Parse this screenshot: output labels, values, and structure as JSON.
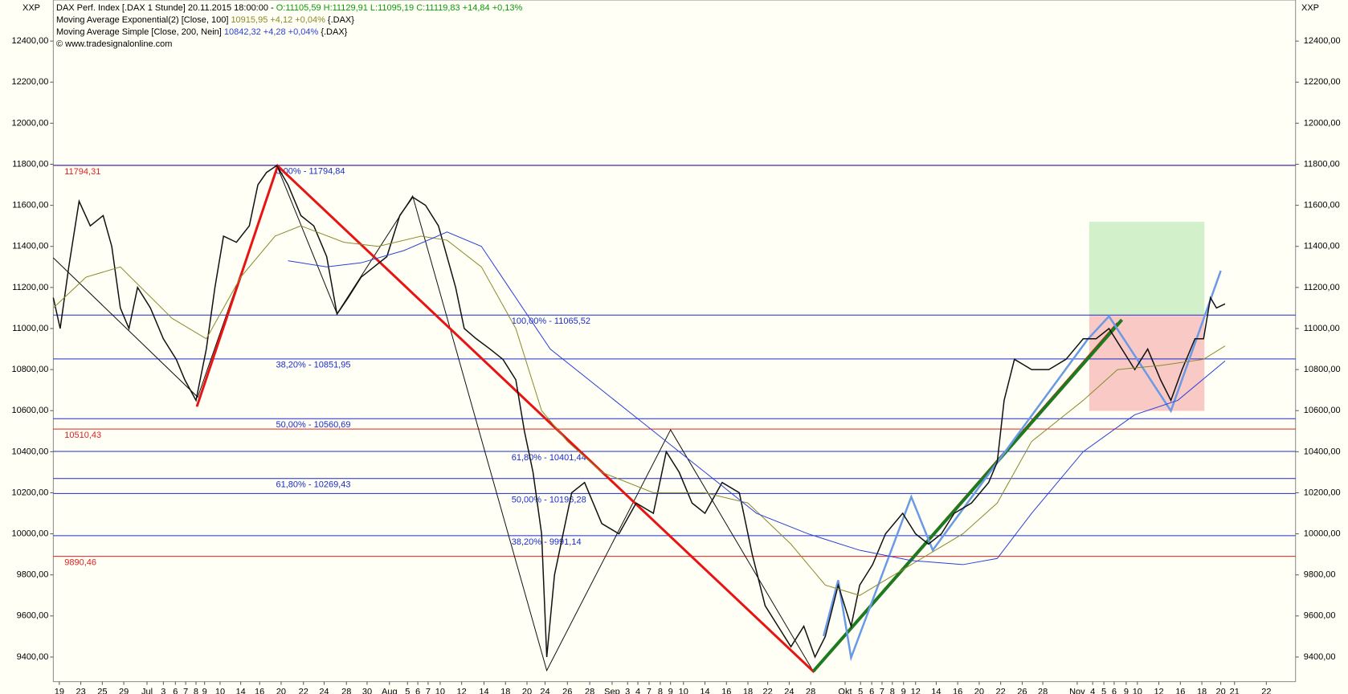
{
  "header": {
    "axis_left": "XXP",
    "axis_right": "XXP",
    "line1_text": "DAX Perf. Index [.DAX  1 Stunde] 20.11.2015 18:00:00 -",
    "line1_quote": "O:11105,59 H:11129,91 L:11095,19 C:11119,83 +14,84 +0,13%",
    "line2_text": "Moving Average Exponential(2) [Close, 100]",
    "line2_value": "10915,95 +4,12 +0,04%",
    "line2_symbol": "{.DAX}",
    "line3_text": "Moving Average Simple [Close, 200, Nein]",
    "line3_value": "10842,32 +4,28 +0,04%",
    "line3_symbol": "{.DAX}",
    "line4_text": "© www.tradesignalonline.com"
  },
  "chart_data": {
    "type": "line",
    "xlim": [
      0,
      1445
    ],
    "ylim": [
      9280,
      12600
    ],
    "yticks": [
      {
        "value": 9400,
        "label": "9400,00"
      },
      {
        "value": 9600,
        "label": "9600,00"
      },
      {
        "value": 9800,
        "label": "9800,00"
      },
      {
        "value": 10000,
        "label": "10000,00"
      },
      {
        "value": 10200,
        "label": "10200,00"
      },
      {
        "value": 10400,
        "label": "10400,00"
      },
      {
        "value": 10600,
        "label": "10600,00"
      },
      {
        "value": 10800,
        "label": "10800,00"
      },
      {
        "value": 11000,
        "label": "11000,00"
      },
      {
        "value": 11200,
        "label": "11200,00"
      },
      {
        "value": 11400,
        "label": "11400,00"
      },
      {
        "value": 11600,
        "label": "11600,00"
      },
      {
        "value": 11800,
        "label": "11800,00"
      },
      {
        "value": 12000,
        "label": "12000,00"
      },
      {
        "value": 12200,
        "label": "12200,00"
      },
      {
        "value": 12400,
        "label": "12400,00"
      }
    ],
    "xticks": [
      {
        "value": 7,
        "label": "19"
      },
      {
        "value": 32,
        "label": "23"
      },
      {
        "value": 57,
        "label": "25"
      },
      {
        "value": 82,
        "label": "29"
      },
      {
        "value": 109,
        "label": "Jul"
      },
      {
        "value": 128,
        "label": "3"
      },
      {
        "value": 142,
        "label": "6"
      },
      {
        "value": 154,
        "label": "7"
      },
      {
        "value": 166,
        "label": "8"
      },
      {
        "value": 176,
        "label": "9"
      },
      {
        "value": 194,
        "label": "10"
      },
      {
        "value": 218,
        "label": "14"
      },
      {
        "value": 240,
        "label": "16"
      },
      {
        "value": 265,
        "label": "20"
      },
      {
        "value": 291,
        "label": "22"
      },
      {
        "value": 315,
        "label": "24"
      },
      {
        "value": 341,
        "label": "28"
      },
      {
        "value": 365,
        "label": "30"
      },
      {
        "value": 391,
        "label": "Aug"
      },
      {
        "value": 412,
        "label": "5"
      },
      {
        "value": 424,
        "label": "6"
      },
      {
        "value": 436,
        "label": "7"
      },
      {
        "value": 450,
        "label": "10"
      },
      {
        "value": 475,
        "label": "12"
      },
      {
        "value": 501,
        "label": "14"
      },
      {
        "value": 526,
        "label": "18"
      },
      {
        "value": 551,
        "label": "20"
      },
      {
        "value": 572,
        "label": "24"
      },
      {
        "value": 598,
        "label": "26"
      },
      {
        "value": 624,
        "label": "28"
      },
      {
        "value": 650,
        "label": "Sep"
      },
      {
        "value": 668,
        "label": "3"
      },
      {
        "value": 680,
        "label": "4"
      },
      {
        "value": 693,
        "label": "7"
      },
      {
        "value": 706,
        "label": "8"
      },
      {
        "value": 718,
        "label": "9"
      },
      {
        "value": 733,
        "label": "10"
      },
      {
        "value": 758,
        "label": "14"
      },
      {
        "value": 783,
        "label": "16"
      },
      {
        "value": 808,
        "label": "18"
      },
      {
        "value": 831,
        "label": "22"
      },
      {
        "value": 856,
        "label": "24"
      },
      {
        "value": 881,
        "label": "28"
      },
      {
        "value": 921,
        "label": "Okt"
      },
      {
        "value": 939,
        "label": "5"
      },
      {
        "value": 952,
        "label": "6"
      },
      {
        "value": 964,
        "label": "7"
      },
      {
        "value": 976,
        "label": "8"
      },
      {
        "value": 989,
        "label": "9"
      },
      {
        "value": 1003,
        "label": "12"
      },
      {
        "value": 1027,
        "label": "14"
      },
      {
        "value": 1052,
        "label": "16"
      },
      {
        "value": 1077,
        "label": "20"
      },
      {
        "value": 1102,
        "label": "22"
      },
      {
        "value": 1127,
        "label": "26"
      },
      {
        "value": 1151,
        "label": "28"
      },
      {
        "value": 1191,
        "label": "Nov"
      },
      {
        "value": 1209,
        "label": "4"
      },
      {
        "value": 1222,
        "label": "5"
      },
      {
        "value": 1234,
        "label": "6"
      },
      {
        "value": 1248,
        "label": "9"
      },
      {
        "value": 1261,
        "label": "10"
      },
      {
        "value": 1286,
        "label": "12"
      },
      {
        "value": 1311,
        "label": "16"
      },
      {
        "value": 1336,
        "label": "18"
      },
      {
        "value": 1358,
        "label": "20"
      },
      {
        "value": 1374,
        "label": "21"
      },
      {
        "value": 1411,
        "label": "22"
      }
    ],
    "series": [
      {
        "name": "DAX Perf. Index",
        "color": "#111111",
        "x": [
          0,
          8,
          18,
          30,
          43,
          58,
          68,
          78,
          88,
          98,
          113,
          128,
          143,
          153,
          166,
          178,
          188,
          198,
          213,
          228,
          238,
          248,
          260,
          273,
          288,
          303,
          318,
          330,
          343,
          358,
          373,
          388,
          403,
          418,
          433,
          448,
          458,
          468,
          478,
          492,
          508,
          523,
          538,
          548,
          558,
          568,
          574,
          583,
          593,
          603,
          618,
          638,
          658,
          678,
          698,
          713,
          728,
          743,
          758,
          778,
          798,
          813,
          828,
          843,
          858,
          873,
          886,
          898,
          913,
          928,
          938,
          953,
          968,
          988,
          1003,
          1018,
          1033,
          1048,
          1068,
          1088,
          1098,
          1106,
          1118,
          1138,
          1158,
          1178,
          1198,
          1213,
          1228,
          1243,
          1258,
          1273,
          1288,
          1300,
          1313,
          1328,
          1338,
          1346,
          1353,
          1363
        ],
        "values": [
          11150,
          11000,
          11300,
          11620,
          11500,
          11550,
          11400,
          11100,
          11000,
          11200,
          11100,
          10950,
          10850,
          10750,
          10650,
          10900,
          11200,
          11450,
          11420,
          11500,
          11700,
          11760,
          11794,
          11700,
          11550,
          11500,
          11350,
          11070,
          11150,
          11250,
          11300,
          11350,
          11550,
          11640,
          11600,
          11500,
          11350,
          11200,
          11000,
          10950,
          10900,
          10850,
          10750,
          10500,
          10300,
          10000,
          9400,
          9800,
          10000,
          10200,
          10250,
          10050,
          10000,
          10150,
          10100,
          10400,
          10300,
          10150,
          10100,
          10250,
          10200,
          9900,
          9650,
          9550,
          9450,
          9550,
          9400,
          9500,
          9750,
          9550,
          9750,
          9850,
          10000,
          10100,
          10000,
          9950,
          10000,
          10100,
          10150,
          10250,
          10350,
          10650,
          10850,
          10800,
          10800,
          10850,
          10950,
          10950,
          11000,
          10900,
          10800,
          10900,
          10750,
          10650,
          10800,
          10950,
          10950,
          11150,
          11100,
          11120
        ]
      },
      {
        "name": "Moving Average Exponential(2) [Close, 100]",
        "color": "#8a8a2a",
        "x": [
          0,
          38,
          78,
          138,
          178,
          218,
          258,
          288,
          338,
          378,
          428,
          458,
          498,
          538,
          568,
          598,
          638,
          698,
          758,
          808,
          858,
          898,
          938,
          978,
          1018,
          1058,
          1098,
          1138,
          1198,
          1238,
          1288,
          1338,
          1363
        ],
        "values": [
          11100,
          11250,
          11300,
          11050,
          10950,
          11250,
          11450,
          11500,
          11420,
          11400,
          11450,
          11430,
          11300,
          11000,
          10600,
          10450,
          10300,
          10200,
          10200,
          10150,
          9950,
          9750,
          9700,
          9800,
          9900,
          10000,
          10150,
          10450,
          10650,
          10800,
          10820,
          10850,
          10915
        ]
      },
      {
        "name": "Moving Average Simple [Close, 200, Nein]",
        "color": "#2a3fd8",
        "x": [
          273,
          318,
          358,
          408,
          458,
          498,
          538,
          578,
          638,
          698,
          758,
          818,
          878,
          938,
          998,
          1058,
          1098,
          1138,
          1198,
          1258,
          1308,
          1363
        ],
        "values": [
          11330,
          11300,
          11320,
          11380,
          11470,
          11400,
          11150,
          10900,
          10700,
          10500,
          10300,
          10100,
          10000,
          9920,
          9870,
          9850,
          9880,
          10100,
          10400,
          10580,
          10650,
          10842
        ]
      }
    ],
    "levels": [
      {
        "value": 11794.31,
        "color": "#e02020",
        "label": "11794,31"
      },
      {
        "value": 11794.84,
        "color": "#1a2ccc",
        "label": "0,00% - 11794,84"
      },
      {
        "value": 11065.52,
        "color": "#1a2ccc",
        "label": "100,00% - 11065,52"
      },
      {
        "value": 10851.95,
        "color": "#1a2ccc",
        "label": "38,20% - 10851,95"
      },
      {
        "value": 10560.69,
        "color": "#1a2ccc",
        "label": "50,00% - 10560,69"
      },
      {
        "value": 10510.43,
        "color": "#e02020",
        "label": "10510,43"
      },
      {
        "value": 10401.44,
        "color": "#1a2ccc",
        "label": "61,80% - 10401,44"
      },
      {
        "value": 10269.43,
        "color": "#1a2ccc",
        "label": "61,80% - 10269,43"
      },
      {
        "value": 10196.28,
        "color": "#1a2ccc",
        "label": "50,00% - 10196,28"
      },
      {
        "value": 9991.14,
        "color": "#1a2ccc",
        "label": "38,20% - 9991,14"
      },
      {
        "value": 9890.46,
        "color": "#e02020",
        "label": "9890,46"
      }
    ]
  }
}
